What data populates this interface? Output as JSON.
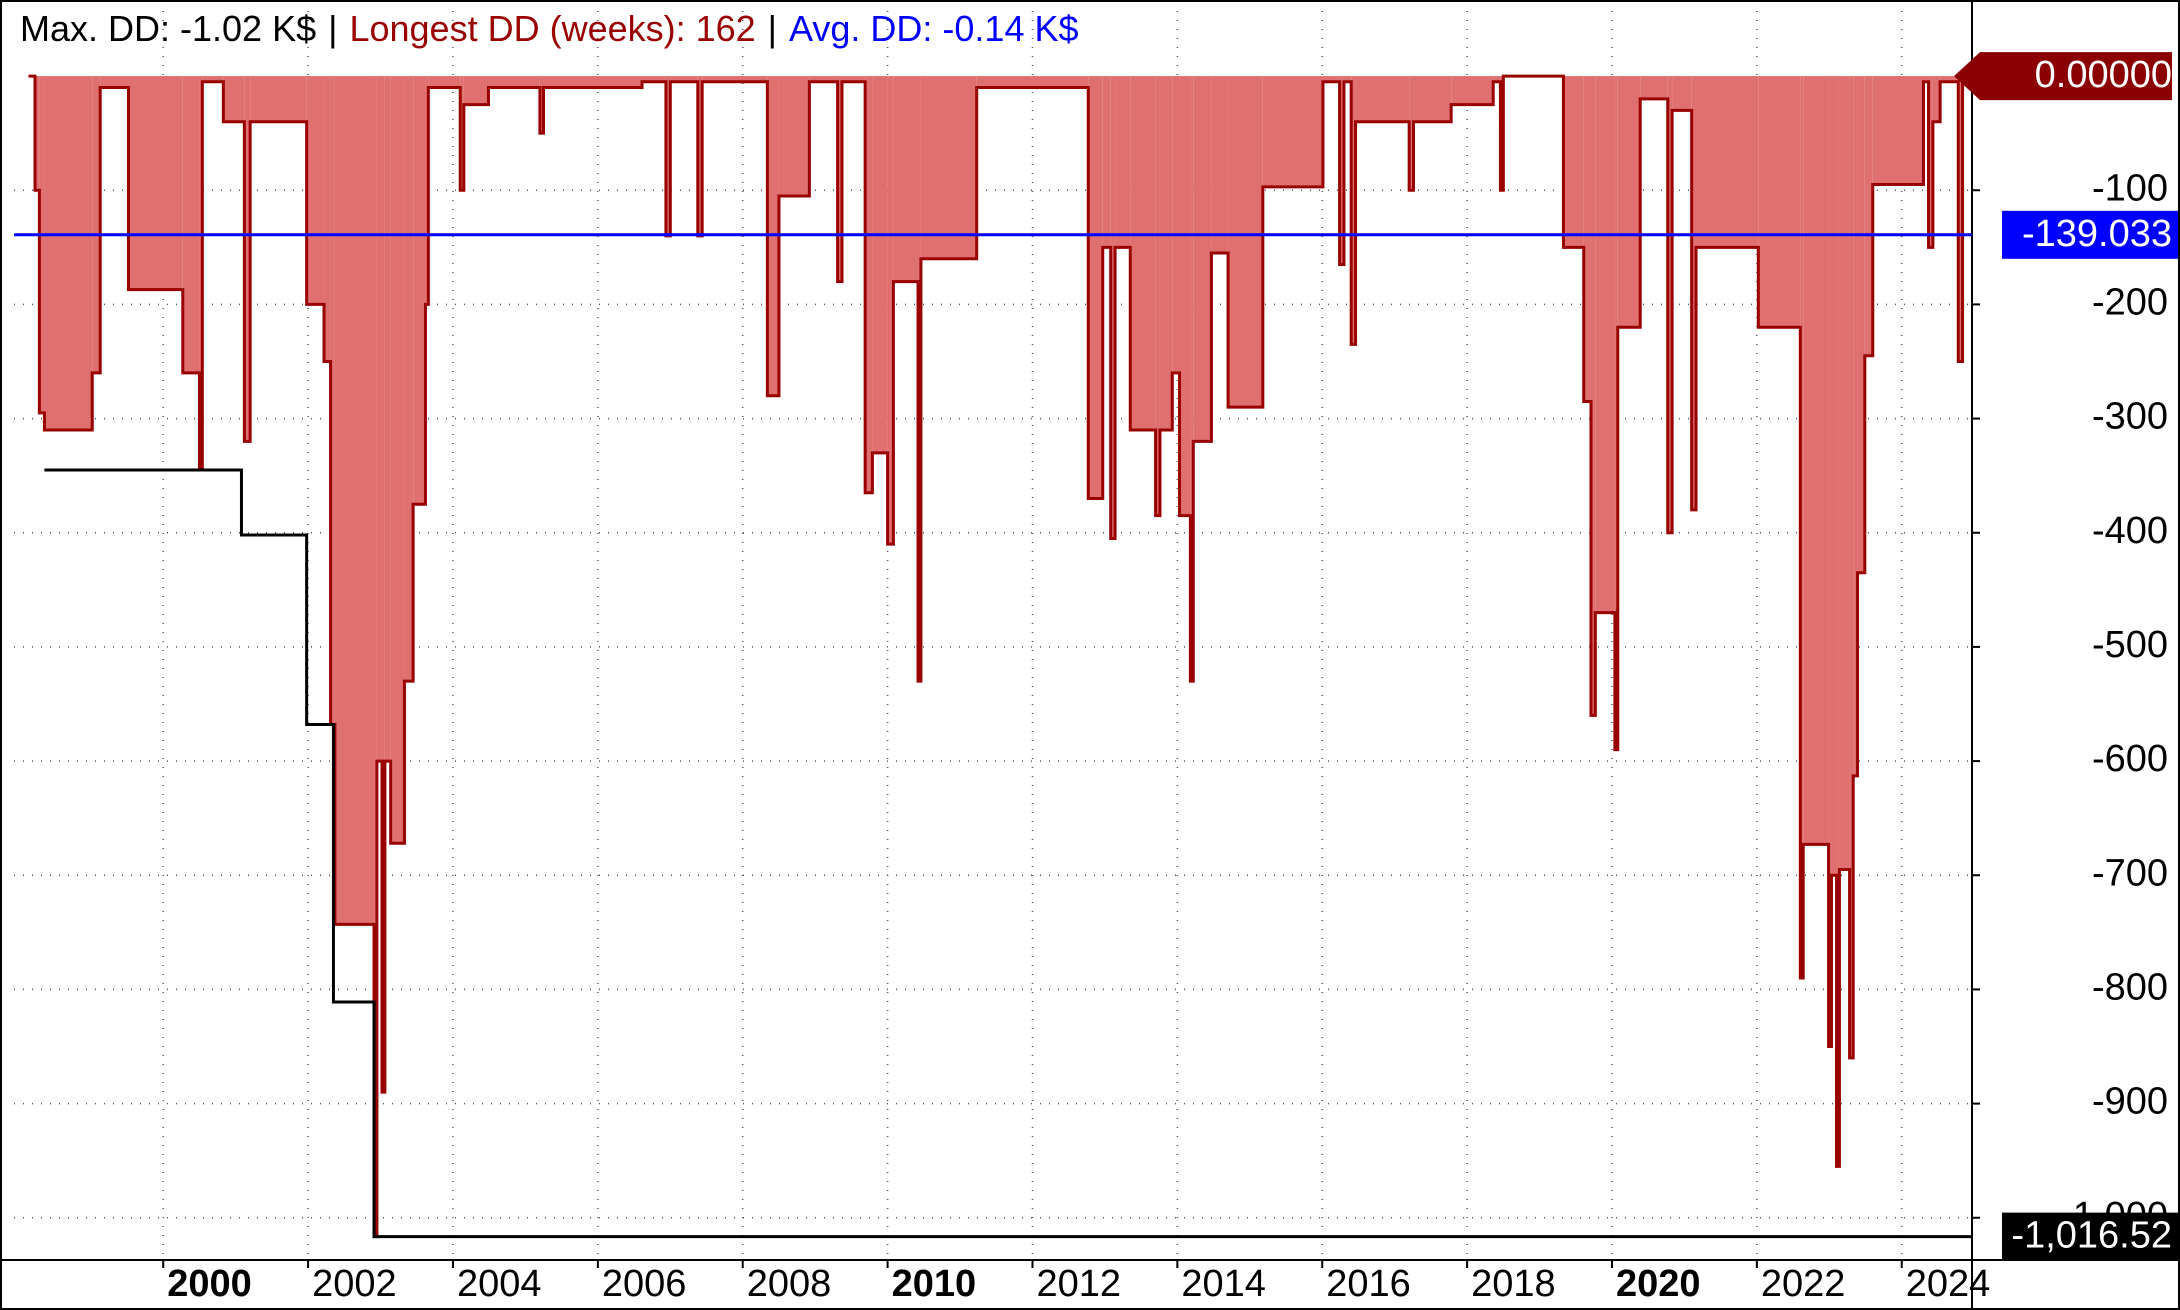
{
  "chart_data": {
    "type": "drawdown",
    "header": {
      "separator": "|",
      "items": [
        {
          "text": "Max. DD: -1.02 K$",
          "color": "#000000"
        },
        {
          "text": "Longest DD (weeks): 162",
          "color": "#990000"
        },
        {
          "text": "Avg. DD: -0.14 K$",
          "color": "#0000ff"
        }
      ]
    },
    "xlim": [
      1997.94,
      2024.97
    ],
    "xticks": [
      2000,
      2002,
      2004,
      2006,
      2008,
      2010,
      2012,
      2014,
      2016,
      2018,
      2020,
      2022,
      2024
    ],
    "ylim": [
      -1037,
      57
    ],
    "yticks": [
      -100,
      -200,
      -300,
      -400,
      -500,
      -600,
      -700,
      -800,
      -900,
      {
        "value": -1000,
        "label": "-1,000"
      }
    ],
    "grid": true,
    "series": [
      {
        "name": "Drawdown",
        "color": "#e07070",
        "stroke": "#990000",
        "x": [
          1998.14,
          1998.23,
          1998.29,
          1998.36,
          1999.02,
          1999.13,
          1999.52,
          2000.27,
          2000.5,
          2000.54,
          2000.83,
          2001.12,
          2001.2,
          2001.98,
          2002.22,
          2002.31,
          2002.37,
          2002.91,
          2002.95,
          2003.02,
          2003.06,
          2003.14,
          2003.33,
          2003.45,
          2003.62,
          2003.66,
          2004.1,
          2004.15,
          2004.49,
          2005.2,
          2005.25,
          2006.61,
          2006.94,
          2007.0,
          2007.38,
          2007.44,
          2008.34,
          2008.5,
          2008.92,
          2009.31,
          2009.37,
          2009.69,
          2009.79,
          2010.0,
          2010.08,
          2010.42,
          2010.46,
          2011.23,
          2012.77,
          2012.97,
          2013.08,
          2013.14,
          2013.35,
          2013.7,
          2013.76,
          2013.93,
          2014.03,
          2014.18,
          2014.22,
          2014.47,
          2014.7,
          2015.18,
          2016.01,
          2016.24,
          2016.3,
          2016.4,
          2016.46,
          2017.2,
          2017.26,
          2017.78,
          2018.36,
          2018.46,
          2018.5,
          2019.33,
          2019.61,
          2019.71,
          2019.77,
          2020.04,
          2020.08,
          2020.39,
          2020.77,
          2020.83,
          2021.1,
          2021.16,
          2022.02,
          2022.6,
          2022.64,
          2022.99,
          2023.03,
          2023.1,
          2023.14,
          2023.28,
          2023.33,
          2023.39,
          2023.49,
          2023.6,
          2024.3,
          2024.37,
          2024.43,
          2024.53,
          2024.78,
          2024.84
        ],
        "values": [
          0,
          -100,
          -295,
          -310,
          -260,
          -10,
          -187,
          -260,
          -345,
          -5,
          -40,
          -320,
          -40,
          -200,
          -250,
          -568,
          -743,
          -1016.52,
          -600,
          -890,
          -600,
          -672,
          -530,
          -375,
          -200,
          -10,
          -100,
          -25,
          -10,
          -50,
          -10,
          -5,
          -140,
          -5,
          -140,
          -5,
          -280,
          -105,
          -5,
          -180,
          -5,
          -365,
          -330,
          -410,
          -180,
          -530,
          -160,
          -10,
          -370,
          -150,
          -405,
          -150,
          -310,
          -385,
          -310,
          -260,
          -385,
          -530,
          -320,
          -155,
          -290,
          -97,
          -5,
          -165,
          -5,
          -235,
          -40,
          -100,
          -40,
          -25,
          -5,
          -100,
          0,
          -150,
          -285,
          -560,
          -470,
          -590,
          -220,
          -20,
          -400,
          -30,
          -380,
          -150,
          -220,
          -790,
          -673,
          -850,
          -700,
          -955,
          -695,
          -860,
          -613,
          -435,
          -245,
          -95,
          -5,
          -150,
          -40,
          -5,
          -250,
          0
        ]
      },
      {
        "name": "Max DD",
        "color": "#000000",
        "x": [
          1998.36,
          2001.08,
          2001.98,
          2002.35,
          2002.91,
          2024.97
        ],
        "values": [
          -345,
          -402,
          -568,
          -811,
          -1016.52,
          -1016.52
        ]
      }
    ],
    "annotations": [
      {
        "value": 0,
        "label": "0.00000",
        "color": "#8b0000"
      },
      {
        "value": -139.033,
        "label": "-139.033",
        "color": "#0000ff",
        "line": true
      },
      {
        "value": -1016.52,
        "label": "-1,016.52",
        "color": "#000000"
      }
    ]
  }
}
